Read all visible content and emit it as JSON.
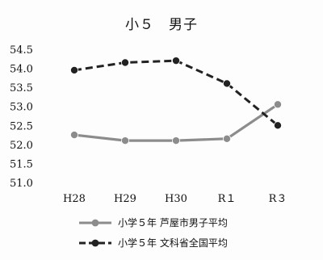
{
  "chart_data": {
    "type": "line",
    "title": "小５　男子",
    "categories": [
      "H28",
      "H29",
      "H30",
      "R１",
      "R３"
    ],
    "ylim": [
      51.0,
      54.5
    ],
    "yticks": [
      "54.5",
      "54.0",
      "53.5",
      "53.0",
      "52.5",
      "52.0",
      "51.5",
      "51.0"
    ],
    "ytick_values": [
      54.5,
      54.0,
      53.5,
      53.0,
      52.5,
      52.0,
      51.5,
      51.0
    ],
    "grid": false,
    "legend_position": "bottom",
    "series": [
      {
        "name": "小学５年 芦屋市男子平均",
        "values": [
          52.25,
          52.1,
          52.1,
          52.15,
          53.05
        ],
        "color": "#8c8c8c",
        "style": "solid"
      },
      {
        "name": "小学５年 文科省全国平均",
        "values": [
          53.95,
          54.15,
          54.2,
          53.6,
          52.5
        ],
        "color": "#222222",
        "style": "dashed"
      }
    ]
  }
}
